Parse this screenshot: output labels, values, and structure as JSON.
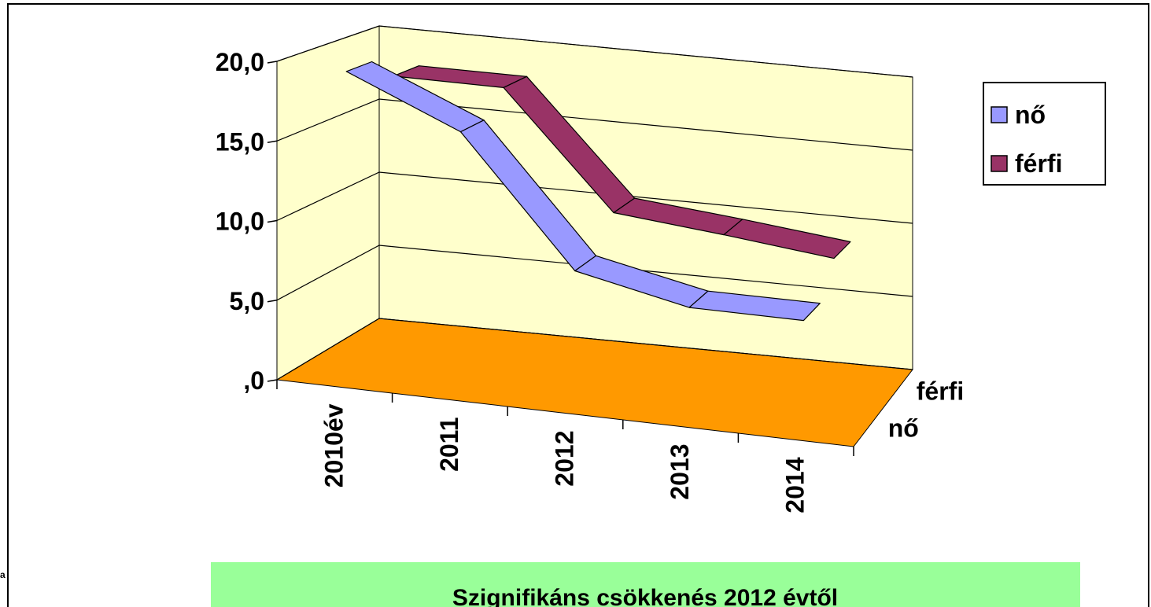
{
  "chart_data": {
    "type": "line3d",
    "categories": [
      "2010év",
      "2011",
      "2012",
      "2013",
      "2014"
    ],
    "series": [
      {
        "name": "nő",
        "color": "#9999ff",
        "values": [
          19.5,
          16.5,
          8.5,
          7.0,
          7.0
        ]
      },
      {
        "name": "férfi",
        "color": "#993366",
        "values": [
          18.0,
          18.0,
          10.5,
          9.8,
          9.0
        ]
      }
    ],
    "ylim": [
      0,
      20
    ],
    "yticks": [
      {
        "value": 0,
        "label": ",0"
      },
      {
        "value": 5,
        "label": "5,0"
      },
      {
        "value": 10,
        "label": "10,0"
      },
      {
        "value": 15,
        "label": "15,0"
      },
      {
        "value": 20,
        "label": "20,0"
      }
    ],
    "grid": true,
    "legend": "right",
    "wall_color": "#ffffcc",
    "floor_color": "#ff9900",
    "annotation": "Szignifikáns csökkenés 2012 évtől",
    "side_text": "a"
  }
}
